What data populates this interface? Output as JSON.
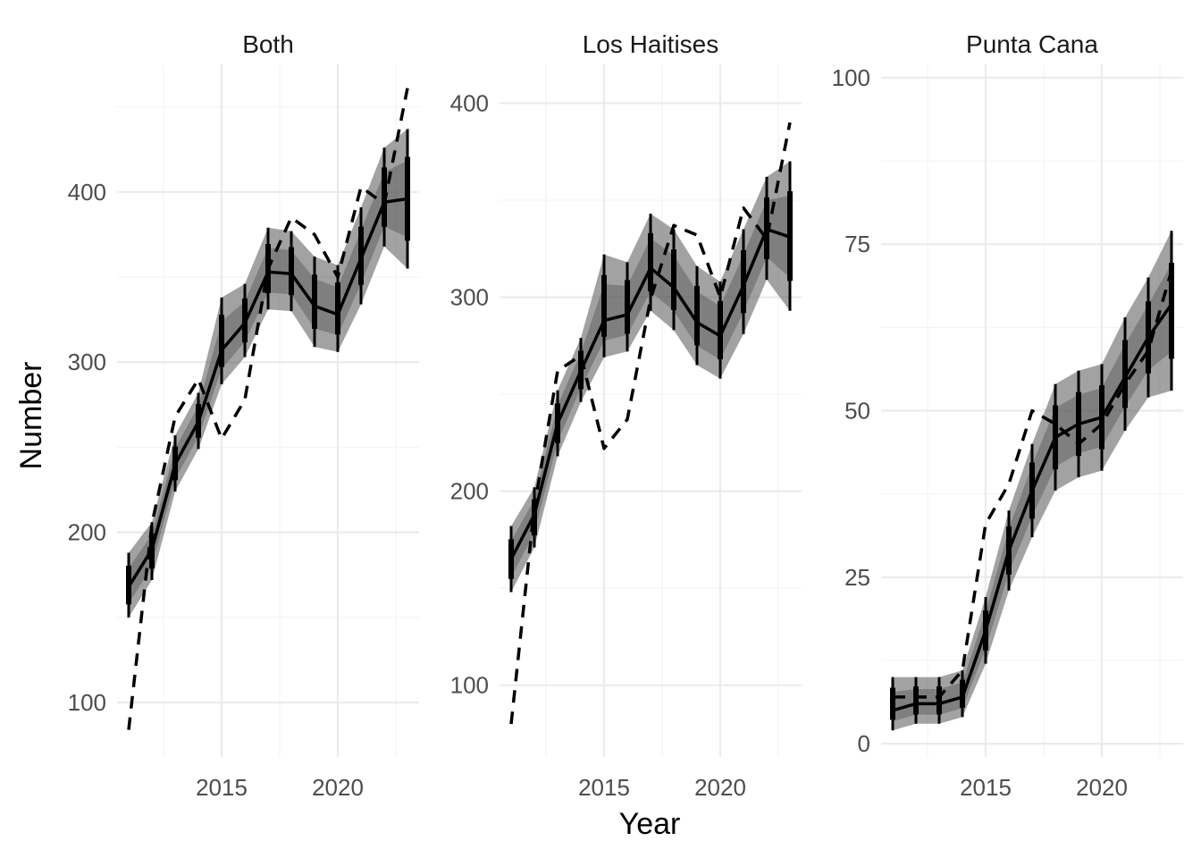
{
  "figure": {
    "xlabel": "Year",
    "ylabel": "Number"
  },
  "colors": {
    "grid_major": "#ebebeb",
    "grid_minor": "#f4f4f4",
    "band": "#555555",
    "line": "#000000",
    "tick_text": "#4d4d4d"
  },
  "chart_data": [
    {
      "type": "line",
      "title": "Both",
      "x": [
        2011,
        2012,
        2013,
        2014,
        2015,
        2016,
        2017,
        2018,
        2019,
        2020,
        2021,
        2022,
        2023
      ],
      "xlim": [
        2010.5,
        2023.5
      ],
      "xticks": [
        2015,
        2020
      ],
      "ylim": [
        68,
        475
      ],
      "yticks": [
        100,
        200,
        300,
        400
      ],
      "grid": true,
      "series": [
        {
          "style": "solid",
          "values": [
            168,
            190,
            240,
            265,
            307,
            323,
            353,
            352,
            333,
            328,
            361,
            394,
            396
          ],
          "interval": [
            [
              150,
              188
            ],
            [
              172,
              206
            ],
            [
              224,
              257
            ],
            [
              249,
              282
            ],
            [
              287,
              338
            ],
            [
              303,
              346
            ],
            [
              331,
              379
            ],
            [
              330,
              377
            ],
            [
              309,
              362
            ],
            [
              306,
              357
            ],
            [
              334,
              391
            ],
            [
              368,
              426
            ],
            [
              355,
              437
            ]
          ]
        },
        {
          "style": "dashed",
          "values": [
            84,
            205,
            268,
            290,
            255,
            278,
            355,
            385,
            375,
            350,
            403,
            393,
            461
          ]
        }
      ]
    },
    {
      "type": "line",
      "title": "Los Haitises",
      "x": [
        2011,
        2012,
        2013,
        2014,
        2015,
        2016,
        2017,
        2018,
        2019,
        2020,
        2021,
        2022,
        2023
      ],
      "xlim": [
        2010.5,
        2023.5
      ],
      "xticks": [
        2015,
        2020
      ],
      "ylim": [
        63,
        420
      ],
      "yticks": [
        100,
        200,
        300,
        400
      ],
      "grid": true,
      "series": [
        {
          "style": "solid",
          "values": [
            165,
            188,
            235,
            262,
            288,
            291,
            315,
            305,
            287,
            280,
            306,
            335,
            331
          ],
          "interval": [
            [
              148,
              182
            ],
            [
              171,
              202
            ],
            [
              218,
              252
            ],
            [
              246,
              279
            ],
            [
              269,
              322
            ],
            [
              272,
              318
            ],
            [
              293,
              343
            ],
            [
              283,
              335
            ],
            [
              265,
              316
            ],
            [
              258,
              308
            ],
            [
              281,
              335
            ],
            [
              309,
              362
            ],
            [
              293,
              370
            ]
          ]
        },
        {
          "style": "dashed",
          "values": [
            80,
            192,
            262,
            270,
            222,
            237,
            299,
            337,
            332,
            300,
            346,
            330,
            390
          ]
        }
      ]
    },
    {
      "type": "line",
      "title": "Punta Cana",
      "x": [
        2011,
        2012,
        2013,
        2014,
        2015,
        2016,
        2017,
        2018,
        2019,
        2020,
        2021,
        2022,
        2023
      ],
      "xlim": [
        2010.5,
        2023.5
      ],
      "xticks": [
        2015,
        2020
      ],
      "ylim": [
        -2,
        102
      ],
      "yticks": [
        0,
        25,
        50,
        75,
        100
      ],
      "grid": true,
      "series": [
        {
          "style": "solid",
          "values": [
            5,
            6,
            6,
            7,
            17,
            29,
            38,
            46,
            48,
            49,
            55,
            61,
            66
          ],
          "interval": [
            [
              2,
              10
            ],
            [
              3,
              10
            ],
            [
              3,
              10
            ],
            [
              4,
              11
            ],
            [
              12,
              22
            ],
            [
              23,
              35
            ],
            [
              31,
              45
            ],
            [
              38,
              54
            ],
            [
              40,
              56
            ],
            [
              41,
              57
            ],
            [
              47,
              64
            ],
            [
              52,
              70
            ],
            [
              53,
              77
            ]
          ]
        },
        {
          "style": "dashed",
          "values": [
            7,
            7,
            7,
            11,
            33,
            39,
            50,
            48,
            45,
            48,
            54,
            59,
            71
          ]
        }
      ]
    }
  ]
}
